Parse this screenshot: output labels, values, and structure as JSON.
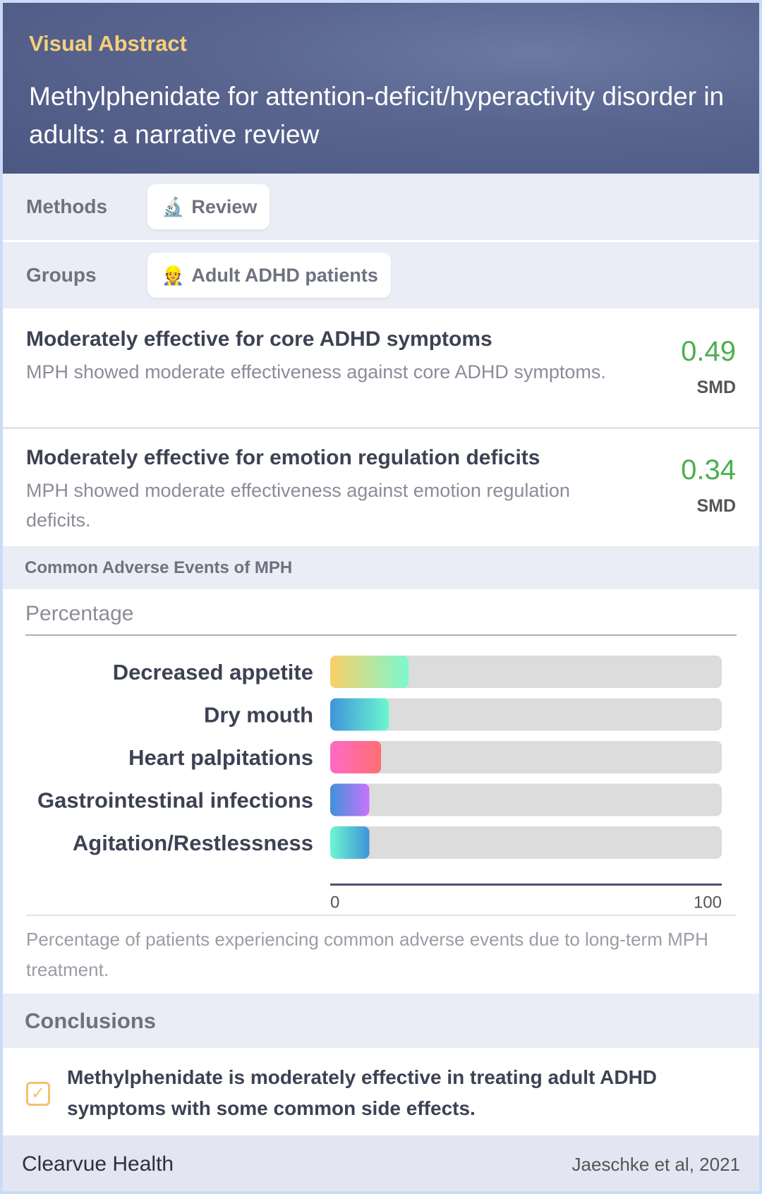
{
  "header": {
    "kicker": "Visual Abstract",
    "title": "Methylphenidate for attention-deficit/hyperactivity disorder in adults: a narrative review"
  },
  "methods": {
    "label": "Methods",
    "icon": "microscope-icon",
    "value": "Review"
  },
  "groups": {
    "label": "Groups",
    "icon": "person-icon",
    "value": "Adult ADHD patients"
  },
  "findings": [
    {
      "title": "Moderately effective for core ADHD symptoms",
      "text": "MPH showed moderate effectiveness against core ADHD symptoms.",
      "value": "0.49",
      "unit": "SMD"
    },
    {
      "title": "Moderately effective for emotion regulation deficits",
      "text": "MPH showed moderate effectiveness against emotion regulation deficits.",
      "value": "0.34",
      "unit": "SMD"
    }
  ],
  "adverse": {
    "title": "Common Adverse Events of MPH",
    "caption": "Percentage of patients experiencing common adverse events due to long-term MPH treatment."
  },
  "chart_data": {
    "type": "bar",
    "orientation": "horizontal",
    "ylabel": "Percentage",
    "categories": [
      "Decreased appetite",
      "Dry mouth",
      "Heart palpitations",
      "Gastrointestinal infections",
      "Agitation/Restlessness"
    ],
    "values": [
      20,
      15,
      13,
      10,
      10
    ],
    "xlim": [
      0,
      100
    ],
    "ticks": [
      "0",
      "100"
    ],
    "colors": [
      [
        "#fbcf68",
        "#7cf8cf"
      ],
      [
        "#3f94d8",
        "#6cf7d1"
      ],
      [
        "#ff6ac6",
        "#ff6e72"
      ],
      [
        "#4191da",
        "#c873fb"
      ],
      [
        "#6cf7d1",
        "#3f94d8"
      ]
    ],
    "track_color": "#dcdcdc"
  },
  "conclusions": {
    "title": "Conclusions",
    "text": "Methylphenidate is moderately effective in treating adult ADHD symptoms with some common side effects."
  },
  "footer": {
    "brand": "Clearvue Health",
    "citation": "Jaeschke et al, 2021"
  }
}
